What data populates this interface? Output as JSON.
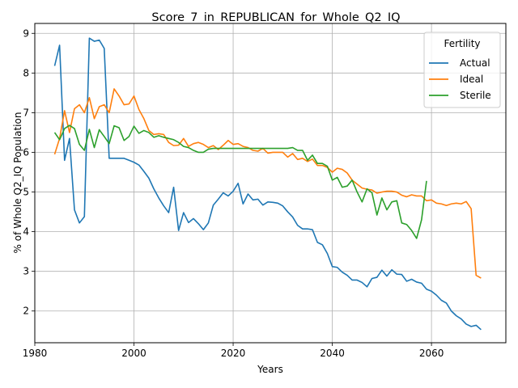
{
  "chart_data": {
    "type": "line",
    "title": "Score_7_in_REPUBLICAN_for_Whole_Q2_IQ",
    "xlabel": "Years",
    "ylabel": "% of Whole Q2_IQ Population",
    "xlim": [
      1980,
      2075
    ],
    "ylim": [
      1.2,
      9.25
    ],
    "x_ticks": [
      1980,
      2000,
      2020,
      2040,
      2060
    ],
    "y_ticks": [
      2,
      3,
      4,
      5,
      6,
      7,
      8,
      9
    ],
    "grid": true,
    "legend": {
      "title": "Fertility",
      "placement": "top-right"
    },
    "series": [
      {
        "name": "Actual",
        "color": "#1f77b4",
        "points": [
          [
            1984,
            8.18
          ],
          [
            1985,
            8.7
          ],
          [
            1986,
            5.8
          ],
          [
            1987,
            6.35
          ],
          [
            1988,
            4.55
          ],
          [
            1989,
            4.22
          ],
          [
            1990,
            4.38
          ],
          [
            1991,
            8.88
          ],
          [
            1992,
            8.8
          ],
          [
            1993,
            8.83
          ],
          [
            1994,
            8.62
          ],
          [
            1995,
            5.85
          ],
          [
            1996,
            5.85
          ],
          [
            1997,
            5.85
          ],
          [
            1998,
            5.85
          ],
          [
            1999,
            5.8
          ],
          [
            2000,
            5.75
          ],
          [
            2001,
            5.68
          ],
          [
            2002,
            5.52
          ],
          [
            2003,
            5.35
          ],
          [
            2004,
            5.08
          ],
          [
            2005,
            4.85
          ],
          [
            2006,
            4.65
          ],
          [
            2007,
            4.48
          ],
          [
            2008,
            5.12
          ],
          [
            2009,
            4.03
          ],
          [
            2010,
            4.48
          ],
          [
            2011,
            4.23
          ],
          [
            2012,
            4.33
          ],
          [
            2013,
            4.2
          ],
          [
            2014,
            4.05
          ],
          [
            2015,
            4.22
          ],
          [
            2016,
            4.67
          ],
          [
            2017,
            4.82
          ],
          [
            2018,
            4.98
          ],
          [
            2019,
            4.9
          ],
          [
            2020,
            5.02
          ],
          [
            2021,
            5.22
          ],
          [
            2022,
            4.7
          ],
          [
            2023,
            4.95
          ],
          [
            2024,
            4.8
          ],
          [
            2025,
            4.82
          ],
          [
            2026,
            4.67
          ],
          [
            2027,
            4.75
          ],
          [
            2028,
            4.74
          ],
          [
            2029,
            4.72
          ],
          [
            2030,
            4.65
          ],
          [
            2031,
            4.5
          ],
          [
            2032,
            4.37
          ],
          [
            2033,
            4.16
          ],
          [
            2034,
            4.07
          ],
          [
            2035,
            4.07
          ],
          [
            2036,
            4.05
          ],
          [
            2037,
            3.73
          ],
          [
            2038,
            3.67
          ],
          [
            2039,
            3.45
          ],
          [
            2040,
            3.12
          ],
          [
            2041,
            3.1
          ],
          [
            2042,
            2.98
          ],
          [
            2043,
            2.9
          ],
          [
            2044,
            2.78
          ],
          [
            2045,
            2.78
          ],
          [
            2046,
            2.72
          ],
          [
            2047,
            2.61
          ],
          [
            2048,
            2.82
          ],
          [
            2049,
            2.85
          ],
          [
            2050,
            3.03
          ],
          [
            2051,
            2.88
          ],
          [
            2052,
            3.04
          ],
          [
            2053,
            2.93
          ],
          [
            2054,
            2.92
          ],
          [
            2055,
            2.75
          ],
          [
            2056,
            2.8
          ],
          [
            2057,
            2.73
          ],
          [
            2058,
            2.7
          ],
          [
            2059,
            2.55
          ],
          [
            2060,
            2.5
          ],
          [
            2061,
            2.4
          ],
          [
            2062,
            2.27
          ],
          [
            2063,
            2.2
          ],
          [
            2064,
            2.0
          ],
          [
            2065,
            1.88
          ],
          [
            2066,
            1.8
          ],
          [
            2067,
            1.67
          ],
          [
            2068,
            1.61
          ],
          [
            2069,
            1.64
          ],
          [
            2070,
            1.53
          ]
        ]
      },
      {
        "name": "Ideal",
        "color": "#ff7f0e",
        "points": [
          [
            1984,
            5.95
          ],
          [
            1985,
            6.35
          ],
          [
            1986,
            7.05
          ],
          [
            1987,
            6.5
          ],
          [
            1988,
            7.1
          ],
          [
            1989,
            7.2
          ],
          [
            1990,
            7.0
          ],
          [
            1991,
            7.38
          ],
          [
            1992,
            6.85
          ],
          [
            1993,
            7.15
          ],
          [
            1994,
            7.2
          ],
          [
            1995,
            7.0
          ],
          [
            1996,
            7.6
          ],
          [
            1997,
            7.42
          ],
          [
            1998,
            7.2
          ],
          [
            1999,
            7.22
          ],
          [
            2000,
            7.42
          ],
          [
            2001,
            7.08
          ],
          [
            2002,
            6.85
          ],
          [
            2003,
            6.55
          ],
          [
            2004,
            6.45
          ],
          [
            2005,
            6.47
          ],
          [
            2006,
            6.45
          ],
          [
            2007,
            6.25
          ],
          [
            2008,
            6.17
          ],
          [
            2009,
            6.18
          ],
          [
            2010,
            6.35
          ],
          [
            2011,
            6.15
          ],
          [
            2012,
            6.22
          ],
          [
            2013,
            6.25
          ],
          [
            2014,
            6.2
          ],
          [
            2015,
            6.12
          ],
          [
            2016,
            6.17
          ],
          [
            2017,
            6.07
          ],
          [
            2018,
            6.18
          ],
          [
            2019,
            6.3
          ],
          [
            2020,
            6.2
          ],
          [
            2021,
            6.22
          ],
          [
            2022,
            6.15
          ],
          [
            2023,
            6.12
          ],
          [
            2024,
            6.05
          ],
          [
            2025,
            6.03
          ],
          [
            2026,
            6.1
          ],
          [
            2027,
            5.98
          ],
          [
            2028,
            6.0
          ],
          [
            2029,
            6.0
          ],
          [
            2030,
            6.0
          ],
          [
            2031,
            5.88
          ],
          [
            2032,
            5.97
          ],
          [
            2033,
            5.82
          ],
          [
            2034,
            5.85
          ],
          [
            2035,
            5.77
          ],
          [
            2036,
            5.83
          ],
          [
            2037,
            5.67
          ],
          [
            2038,
            5.67
          ],
          [
            2039,
            5.62
          ],
          [
            2040,
            5.5
          ],
          [
            2041,
            5.6
          ],
          [
            2042,
            5.57
          ],
          [
            2043,
            5.48
          ],
          [
            2044,
            5.3
          ],
          [
            2045,
            5.2
          ],
          [
            2046,
            5.1
          ],
          [
            2047,
            5.07
          ],
          [
            2048,
            5.05
          ],
          [
            2049,
            4.97
          ],
          [
            2050,
            5.0
          ],
          [
            2051,
            5.02
          ],
          [
            2052,
            5.02
          ],
          [
            2053,
            5.0
          ],
          [
            2054,
            4.92
          ],
          [
            2055,
            4.88
          ],
          [
            2056,
            4.93
          ],
          [
            2057,
            4.9
          ],
          [
            2058,
            4.9
          ],
          [
            2059,
            4.78
          ],
          [
            2060,
            4.8
          ],
          [
            2061,
            4.72
          ],
          [
            2062,
            4.7
          ],
          [
            2063,
            4.66
          ],
          [
            2064,
            4.7
          ],
          [
            2065,
            4.72
          ],
          [
            2066,
            4.7
          ],
          [
            2067,
            4.76
          ],
          [
            2068,
            4.58
          ],
          [
            2069,
            2.9
          ],
          [
            2070,
            2.83
          ]
        ]
      },
      {
        "name": "Sterile",
        "color": "#2ca02c",
        "points": [
          [
            1984,
            6.5
          ],
          [
            1985,
            6.32
          ],
          [
            1986,
            6.6
          ],
          [
            1987,
            6.68
          ],
          [
            1988,
            6.6
          ],
          [
            1989,
            6.2
          ],
          [
            1990,
            6.05
          ],
          [
            1991,
            6.58
          ],
          [
            1992,
            6.12
          ],
          [
            1993,
            6.57
          ],
          [
            1994,
            6.4
          ],
          [
            1995,
            6.22
          ],
          [
            1996,
            6.67
          ],
          [
            1997,
            6.62
          ],
          [
            1998,
            6.3
          ],
          [
            1999,
            6.4
          ],
          [
            2000,
            6.66
          ],
          [
            2001,
            6.48
          ],
          [
            2002,
            6.55
          ],
          [
            2003,
            6.5
          ],
          [
            2004,
            6.38
          ],
          [
            2005,
            6.42
          ],
          [
            2006,
            6.38
          ],
          [
            2007,
            6.35
          ],
          [
            2008,
            6.32
          ],
          [
            2009,
            6.25
          ],
          [
            2010,
            6.15
          ],
          [
            2011,
            6.12
          ],
          [
            2012,
            6.05
          ],
          [
            2013,
            6.0
          ],
          [
            2014,
            6.0
          ],
          [
            2015,
            6.08
          ],
          [
            2016,
            6.1
          ],
          [
            2017,
            6.1
          ],
          [
            2018,
            6.1
          ],
          [
            2019,
            6.1
          ],
          [
            2020,
            6.1
          ],
          [
            2021,
            6.1
          ],
          [
            2022,
            6.1
          ],
          [
            2023,
            6.1
          ],
          [
            2024,
            6.1
          ],
          [
            2025,
            6.1
          ],
          [
            2026,
            6.1
          ],
          [
            2027,
            6.1
          ],
          [
            2028,
            6.1
          ],
          [
            2029,
            6.1
          ],
          [
            2030,
            6.1
          ],
          [
            2031,
            6.1
          ],
          [
            2032,
            6.12
          ],
          [
            2033,
            6.05
          ],
          [
            2034,
            6.05
          ],
          [
            2035,
            5.8
          ],
          [
            2036,
            5.93
          ],
          [
            2037,
            5.72
          ],
          [
            2038,
            5.72
          ],
          [
            2039,
            5.65
          ],
          [
            2040,
            5.3
          ],
          [
            2041,
            5.37
          ],
          [
            2042,
            5.12
          ],
          [
            2043,
            5.15
          ],
          [
            2044,
            5.3
          ],
          [
            2045,
            5.0
          ],
          [
            2046,
            4.75
          ],
          [
            2047,
            5.08
          ],
          [
            2048,
            4.98
          ],
          [
            2049,
            4.42
          ],
          [
            2050,
            4.85
          ],
          [
            2051,
            4.55
          ],
          [
            2052,
            4.75
          ],
          [
            2053,
            4.78
          ],
          [
            2054,
            4.22
          ],
          [
            2055,
            4.18
          ],
          [
            2056,
            4.03
          ],
          [
            2057,
            3.83
          ],
          [
            2058,
            4.3
          ],
          [
            2059,
            5.28
          ]
        ]
      }
    ]
  }
}
